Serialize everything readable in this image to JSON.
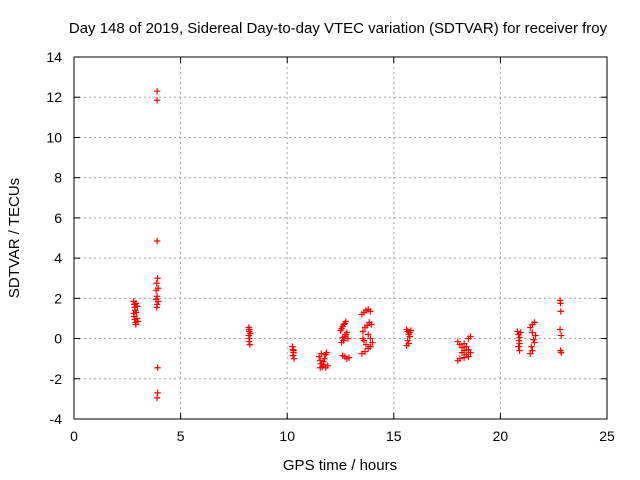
{
  "chart_data": {
    "type": "scatter",
    "title": "Day 148 of 2019, Sidereal Day-to-day VTEC variation (SDTVAR) for receiver froy",
    "xlabel": "GPS time / hours",
    "ylabel": "SDTVAR / TECUs",
    "xlim": [
      0,
      25
    ],
    "ylim": [
      -4,
      14
    ],
    "xticks": [
      0,
      5,
      10,
      15,
      20,
      25
    ],
    "yticks": [
      -4,
      -2,
      0,
      2,
      4,
      6,
      8,
      10,
      12,
      14
    ],
    "grid": true,
    "marker": "plus",
    "color": "#ff0000",
    "series": [
      {
        "name": "SDTVAR",
        "points": [
          [
            2.8,
            1.85
          ],
          [
            2.83,
            1.7
          ],
          [
            2.85,
            1.55
          ],
          [
            2.87,
            1.4
          ],
          [
            2.8,
            1.25
          ],
          [
            2.82,
            1.1
          ],
          [
            2.85,
            0.95
          ],
          [
            2.88,
            0.8
          ],
          [
            2.9,
            0.7
          ],
          [
            2.95,
            1.0
          ],
          [
            2.92,
            1.3
          ],
          [
            2.97,
            1.6
          ],
          [
            2.9,
            1.75
          ],
          [
            3.0,
            0.85
          ],
          [
            3.9,
            12.3
          ],
          [
            3.9,
            11.85
          ],
          [
            3.9,
            4.85
          ],
          [
            3.92,
            3.0
          ],
          [
            3.88,
            2.75
          ],
          [
            3.85,
            2.4
          ],
          [
            3.95,
            2.5
          ],
          [
            3.9,
            2.1
          ],
          [
            3.85,
            1.95
          ],
          [
            3.95,
            1.85
          ],
          [
            3.9,
            1.7
          ],
          [
            3.88,
            1.55
          ],
          [
            3.92,
            -1.45
          ],
          [
            3.92,
            -2.7
          ],
          [
            3.9,
            -2.95
          ],
          [
            8.2,
            0.55
          ],
          [
            8.22,
            0.35
          ],
          [
            8.2,
            0.15
          ],
          [
            8.23,
            0.0
          ],
          [
            8.21,
            -0.15
          ],
          [
            8.25,
            -0.3
          ],
          [
            8.22,
            0.45
          ],
          [
            8.27,
            0.25
          ],
          [
            10.25,
            -0.4
          ],
          [
            10.28,
            -0.55
          ],
          [
            10.3,
            -0.7
          ],
          [
            10.27,
            -0.85
          ],
          [
            10.32,
            -1.0
          ],
          [
            10.3,
            -0.6
          ],
          [
            11.5,
            -0.9
          ],
          [
            11.55,
            -1.1
          ],
          [
            11.6,
            -1.25
          ],
          [
            11.65,
            -1.4
          ],
          [
            11.7,
            -1.3
          ],
          [
            11.75,
            -1.0
          ],
          [
            11.8,
            -0.8
          ],
          [
            11.85,
            -0.7
          ],
          [
            11.6,
            -0.75
          ],
          [
            11.9,
            -1.35
          ],
          [
            11.7,
            -1.15
          ],
          [
            11.55,
            -1.45
          ],
          [
            11.8,
            -1.45
          ],
          [
            12.5,
            0.4
          ],
          [
            12.55,
            0.5
          ],
          [
            12.6,
            0.6
          ],
          [
            12.65,
            0.7
          ],
          [
            12.7,
            0.75
          ],
          [
            12.75,
            0.85
          ],
          [
            12.6,
            0.05
          ],
          [
            12.65,
            -0.1
          ],
          [
            12.7,
            0.1
          ],
          [
            12.75,
            0.2
          ],
          [
            12.8,
            0.3
          ],
          [
            12.55,
            -0.2
          ],
          [
            12.6,
            -0.85
          ],
          [
            12.7,
            -0.9
          ],
          [
            12.8,
            -1.0
          ],
          [
            12.9,
            -0.95
          ],
          [
            12.85,
            0.0
          ],
          [
            13.5,
            1.2
          ],
          [
            13.6,
            1.3
          ],
          [
            13.7,
            1.4
          ],
          [
            13.8,
            1.45
          ],
          [
            13.9,
            1.35
          ],
          [
            13.55,
            0.35
          ],
          [
            13.65,
            0.55
          ],
          [
            13.75,
            0.65
          ],
          [
            13.85,
            0.8
          ],
          [
            13.95,
            0.7
          ],
          [
            13.6,
            -0.1
          ],
          [
            13.7,
            -0.3
          ],
          [
            13.8,
            -0.5
          ],
          [
            13.9,
            -0.4
          ],
          [
            14.0,
            -0.2
          ],
          [
            13.5,
            -0.75
          ],
          [
            13.65,
            -0.65
          ],
          [
            13.55,
            0.0
          ],
          [
            13.8,
            0.2
          ],
          [
            13.9,
            0.0
          ],
          [
            15.6,
            0.45
          ],
          [
            15.65,
            0.35
          ],
          [
            15.7,
            0.2
          ],
          [
            15.75,
            0.1
          ],
          [
            15.65,
            -0.1
          ],
          [
            15.7,
            -0.25
          ],
          [
            15.6,
            -0.35
          ],
          [
            15.75,
            0.3
          ],
          [
            15.8,
            0.4
          ],
          [
            18.0,
            -0.15
          ],
          [
            18.1,
            -0.3
          ],
          [
            18.2,
            -0.45
          ],
          [
            18.3,
            -0.6
          ],
          [
            18.4,
            -0.8
          ],
          [
            18.5,
            -0.9
          ],
          [
            18.1,
            -1.0
          ],
          [
            18.0,
            -1.1
          ],
          [
            18.6,
            -0.7
          ],
          [
            18.5,
            -0.55
          ],
          [
            18.4,
            -0.4
          ],
          [
            18.3,
            -0.25
          ],
          [
            18.5,
            0.0
          ],
          [
            18.6,
            0.1
          ],
          [
            18.2,
            -0.7
          ],
          [
            18.3,
            -0.95
          ],
          [
            20.8,
            0.35
          ],
          [
            20.85,
            0.2
          ],
          [
            20.9,
            0.05
          ],
          [
            20.87,
            -0.1
          ],
          [
            20.9,
            -0.25
          ],
          [
            20.85,
            -0.4
          ],
          [
            20.9,
            -0.6
          ],
          [
            20.95,
            0.3
          ],
          [
            21.4,
            0.55
          ],
          [
            21.5,
            0.7
          ],
          [
            21.6,
            0.8
          ],
          [
            21.5,
            0.3
          ],
          [
            21.55,
            -0.05
          ],
          [
            21.6,
            -0.2
          ],
          [
            21.45,
            -0.4
          ],
          [
            21.5,
            -0.6
          ],
          [
            21.4,
            -0.75
          ],
          [
            21.65,
            0.15
          ],
          [
            22.8,
            1.9
          ],
          [
            22.82,
            1.75
          ],
          [
            22.83,
            1.35
          ],
          [
            22.8,
            0.45
          ],
          [
            22.85,
            0.15
          ],
          [
            22.82,
            -0.6
          ],
          [
            22.85,
            -0.7
          ]
        ]
      }
    ]
  }
}
